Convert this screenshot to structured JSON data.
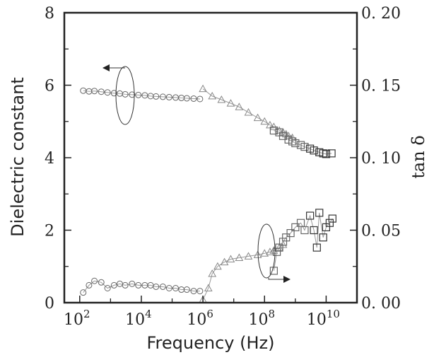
{
  "chart_data": {
    "type": "scatter",
    "x_scale": "log",
    "xlim": [
      100,
      100000000000
    ],
    "ylim_left": [
      0,
      8
    ],
    "ylim_right": [
      0,
      0.2
    ],
    "grid": false,
    "xlabel": "Frequency (Hz)",
    "ylabel_left": "Dielectric constant",
    "ylabel_right": "tan δ",
    "x_ticks": [
      {
        "value": 100,
        "base": "10",
        "exp": "2"
      },
      {
        "value": 10000,
        "base": "10",
        "exp": "4"
      },
      {
        "value": 1000000,
        "base": "10",
        "exp": "6"
      },
      {
        "value": 100000000,
        "base": "10",
        "exp": "8"
      },
      {
        "value": 10000000000,
        "base": "10",
        "exp": "10"
      }
    ],
    "y_left_ticks": [
      {
        "value": 0,
        "label": "0"
      },
      {
        "value": 2,
        "label": "2"
      },
      {
        "value": 4,
        "label": "4"
      },
      {
        "value": 6,
        "label": "6"
      },
      {
        "value": 8,
        "label": "8"
      }
    ],
    "y_right_ticks": [
      {
        "value": 0.0,
        "label": "0. 00"
      },
      {
        "value": 0.05,
        "label": "0. 05"
      },
      {
        "value": 0.1,
        "label": "0. 10"
      },
      {
        "value": 0.15,
        "label": "0. 15"
      },
      {
        "value": 0.2,
        "label": "0. 20"
      }
    ],
    "series": [
      {
        "marker": "circle",
        "axis": "left",
        "x": [
          130,
          200,
          300,
          500,
          800,
          1300,
          2000,
          3000,
          5000,
          8000,
          13000,
          20000,
          30000,
          50000,
          80000,
          130000,
          200000,
          300000,
          500000,
          800000
        ],
        "y": [
          5.85,
          5.83,
          5.84,
          5.82,
          5.8,
          5.78,
          5.77,
          5.75,
          5.74,
          5.73,
          5.72,
          5.7,
          5.69,
          5.68,
          5.67,
          5.66,
          5.65,
          5.64,
          5.63,
          5.62
        ]
      },
      {
        "marker": "triangle",
        "axis": "left",
        "x": [
          1000000,
          2000000,
          4000000,
          8000000,
          15000000,
          30000000,
          60000000,
          100000000,
          150000000,
          200000000,
          300000000,
          400000000,
          500000000,
          600000000,
          800000000
        ],
        "y": [
          5.9,
          5.7,
          5.6,
          5.5,
          5.4,
          5.25,
          5.1,
          5.0,
          4.9,
          4.85,
          4.75,
          4.7,
          4.65,
          4.6,
          4.55
        ]
      },
      {
        "marker": "square",
        "axis": "left",
        "x": [
          200000000,
          300000000,
          400000000,
          600000000,
          800000000,
          1000000000,
          1500000000,
          2000000000,
          3000000000,
          4000000000,
          6000000000,
          8000000000,
          10000000000,
          15000000000
        ],
        "y": [
          4.75,
          4.7,
          4.6,
          4.5,
          4.45,
          4.4,
          4.35,
          4.3,
          4.25,
          4.2,
          4.15,
          4.12,
          4.1,
          4.12
        ]
      },
      {
        "marker": "circle",
        "axis": "right",
        "x": [
          130,
          200,
          300,
          500,
          800,
          1300,
          2000,
          3000,
          5000,
          8000,
          13000,
          20000,
          30000,
          50000,
          80000,
          130000,
          200000,
          300000,
          500000,
          800000
        ],
        "y": [
          0.007,
          0.012,
          0.015,
          0.014,
          0.01,
          0.012,
          0.013,
          0.012,
          0.013,
          0.012,
          0.012,
          0.012,
          0.011,
          0.011,
          0.01,
          0.01,
          0.009,
          0.009,
          0.008,
          0.008
        ]
      },
      {
        "marker": "triangle",
        "axis": "right",
        "x": [
          1000000,
          1500000,
          2000000,
          3000000,
          5000000,
          8000000,
          15000000,
          30000000,
          60000000,
          100000000,
          150000000,
          200000000,
          300000000,
          400000000
        ],
        "y": [
          0.002,
          0.01,
          0.02,
          0.025,
          0.028,
          0.03,
          0.031,
          0.032,
          0.033,
          0.034,
          0.035,
          0.036,
          0.038,
          0.04
        ]
      },
      {
        "marker": "square",
        "axis": "right",
        "x": [
          200000000,
          250000000,
          300000000,
          400000000,
          500000000,
          700000000,
          1000000000,
          1500000000,
          2000000000,
          3000000000,
          4000000000,
          5000000000,
          6000000000,
          8000000000,
          10000000000,
          13000000000,
          16000000000
        ],
        "y": [
          0.022,
          0.035,
          0.038,
          0.042,
          0.045,
          0.048,
          0.052,
          0.055,
          0.05,
          0.06,
          0.05,
          0.038,
          0.062,
          0.045,
          0.052,
          0.055,
          0.058
        ]
      }
    ]
  }
}
